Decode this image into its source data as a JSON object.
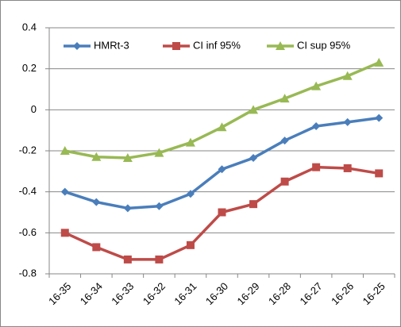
{
  "chart_data": {
    "type": "line",
    "categories": [
      "16-35",
      "16-34",
      "16-33",
      "16-32",
      "16-31",
      "16-30",
      "16-29",
      "16-28",
      "16-27",
      "16-26",
      "16-25"
    ],
    "series": [
      {
        "name": "HMRt-3",
        "color": "#4a7ebb",
        "marker": "diamond",
        "values": [
          -0.4,
          -0.45,
          -0.48,
          -0.47,
          -0.41,
          -0.29,
          -0.235,
          -0.15,
          -0.08,
          -0.06,
          -0.04
        ]
      },
      {
        "name": "CI inf 95%",
        "color": "#be4b48",
        "marker": "square",
        "values": [
          -0.6,
          -0.67,
          -0.73,
          -0.73,
          -0.66,
          -0.5,
          -0.46,
          -0.35,
          -0.28,
          -0.285,
          -0.31
        ]
      },
      {
        "name": "CI sup 95%",
        "color": "#98b954",
        "marker": "triangle",
        "values": [
          -0.2,
          -0.23,
          -0.235,
          -0.21,
          -0.16,
          -0.085,
          0,
          0.055,
          0.115,
          0.165,
          0.23
        ]
      }
    ],
    "ylim": [
      -0.8,
      0.4
    ],
    "yticks": [
      -0.8,
      -0.6,
      -0.4,
      -0.2,
      0,
      0.2,
      0.4
    ],
    "grid": true,
    "legend": "top"
  }
}
